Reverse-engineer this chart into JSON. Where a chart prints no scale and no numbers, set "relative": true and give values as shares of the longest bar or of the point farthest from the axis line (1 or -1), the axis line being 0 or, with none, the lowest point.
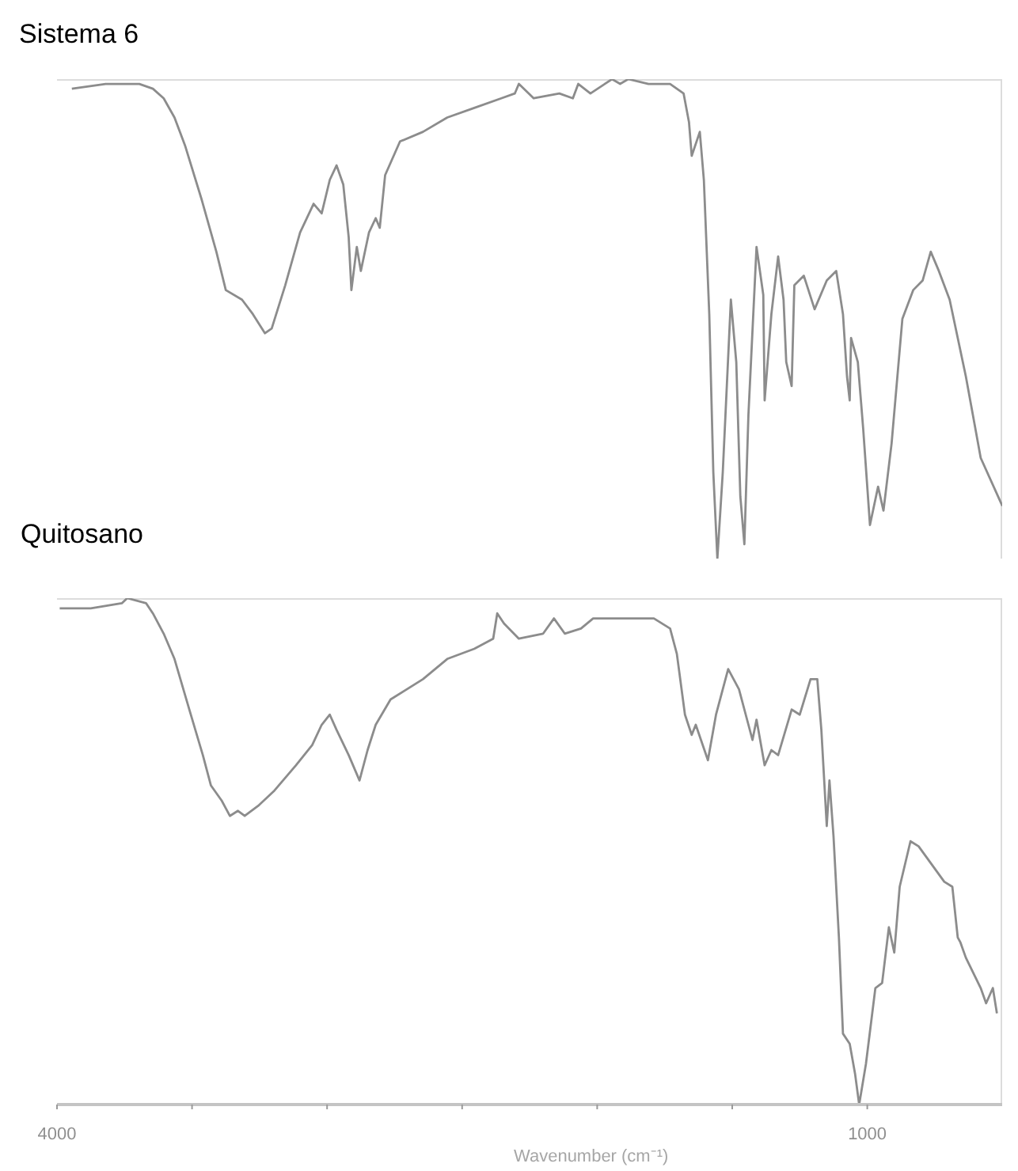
{
  "chart_data": [
    {
      "type": "line",
      "title": "Sistema 6",
      "relative": true,
      "color": "#8c8c8c",
      "xlim": [
        4000,
        500
      ],
      "tick_labels": false,
      "x": [
        3945,
        3820,
        3695,
        3645,
        3605,
        3565,
        3525,
        3465,
        3410,
        3375,
        3315,
        3275,
        3230,
        3205,
        3155,
        3100,
        3050,
        3020,
        2990,
        2965,
        2940,
        2920,
        2910,
        2890,
        2875,
        2845,
        2820,
        2805,
        2785,
        2730,
        2645,
        2555,
        2455,
        2355,
        2305,
        2290,
        2235,
        2140,
        2090,
        2070,
        2025,
        1945,
        1915,
        1885,
        1810,
        1730,
        1680,
        1660,
        1650,
        1620,
        1605,
        1585,
        1570,
        1555,
        1535,
        1505,
        1485,
        1470,
        1455,
        1440,
        1410,
        1385,
        1380,
        1355,
        1330,
        1310,
        1300,
        1280,
        1270,
        1235,
        1195,
        1150,
        1115,
        1090,
        1075,
        1065,
        1060,
        1035,
        1015,
        990,
        960,
        940,
        910,
        870,
        830,
        795,
        765,
        735,
        695,
        635,
        580,
        500
      ],
      "values": [
        0.98,
        0.99,
        0.99,
        0.98,
        0.96,
        0.92,
        0.86,
        0.75,
        0.64,
        0.56,
        0.54,
        0.51,
        0.47,
        0.48,
        0.57,
        0.68,
        0.74,
        0.72,
        0.79,
        0.82,
        0.78,
        0.67,
        0.56,
        0.65,
        0.6,
        0.68,
        0.71,
        0.69,
        0.8,
        0.87,
        0.89,
        0.92,
        0.94,
        0.96,
        0.97,
        0.99,
        0.96,
        0.97,
        0.96,
        0.99,
        0.97,
        1.0,
        0.99,
        1.0,
        0.99,
        0.99,
        0.97,
        0.91,
        0.84,
        0.89,
        0.79,
        0.51,
        0.18,
        0,
        0.18,
        0.54,
        0.41,
        0.13,
        0.03,
        0.3,
        0.65,
        0.55,
        0.33,
        0.51,
        0.63,
        0.54,
        0.41,
        0.36,
        0.57,
        0.59,
        0.52,
        0.58,
        0.6,
        0.51,
        0.38,
        0.33,
        0.46,
        0.41,
        0.27,
        0.07,
        0.15,
        0.1,
        0.24,
        0.5,
        0.56,
        0.58,
        0.64,
        0.6,
        0.54,
        0.38,
        0.21,
        0.11
      ]
    },
    {
      "type": "line",
      "title": "Quitosano",
      "xlabel": "Wavenumber (cm⁻¹)",
      "relative": true,
      "color": "#8c8c8c",
      "xlim": [
        4000,
        500
      ],
      "tick_labels": "x",
      "xticks": [
        4000,
        {
          "value": 3500,
          "label": null
        },
        {
          "value": 3000,
          "label": null
        },
        {
          "value": 2500,
          "label": null
        },
        {
          "value": 2000,
          "label": null
        },
        {
          "value": 1500,
          "label": null
        },
        1000
      ],
      "x": [
        3990,
        3875,
        3760,
        3740,
        3670,
        3645,
        3605,
        3565,
        3510,
        3460,
        3430,
        3390,
        3360,
        3330,
        3305,
        3255,
        3195,
        3115,
        3055,
        3020,
        2990,
        2965,
        2920,
        2880,
        2850,
        2820,
        2765,
        2645,
        2555,
        2455,
        2385,
        2370,
        2345,
        2290,
        2200,
        2160,
        2120,
        2060,
        2015,
        1790,
        1730,
        1705,
        1675,
        1650,
        1635,
        1590,
        1560,
        1515,
        1475,
        1440,
        1425,
        1410,
        1380,
        1355,
        1330,
        1280,
        1250,
        1210,
        1185,
        1170,
        1150,
        1140,
        1125,
        1105,
        1090,
        1065,
        1045,
        1030,
        1005,
        970,
        945,
        920,
        900,
        880,
        840,
        810,
        715,
        685,
        665,
        655,
        635,
        580,
        560,
        535,
        520
      ],
      "values": [
        0.98,
        0.98,
        0.99,
        1.0,
        0.99,
        0.97,
        0.93,
        0.88,
        0.78,
        0.69,
        0.63,
        0.6,
        0.57,
        0.58,
        0.57,
        0.59,
        0.62,
        0.67,
        0.71,
        0.75,
        0.77,
        0.74,
        0.69,
        0.64,
        0.7,
        0.75,
        0.8,
        0.84,
        0.88,
        0.9,
        0.92,
        0.97,
        0.95,
        0.92,
        0.93,
        0.96,
        0.93,
        0.94,
        0.96,
        0.96,
        0.94,
        0.89,
        0.77,
        0.73,
        0.75,
        0.68,
        0.77,
        0.86,
        0.82,
        0.75,
        0.72,
        0.76,
        0.67,
        0.7,
        0.69,
        0.78,
        0.77,
        0.84,
        0.84,
        0.74,
        0.55,
        0.64,
        0.53,
        0.33,
        0.14,
        0.12,
        0.06,
        0,
        0.08,
        0.23,
        0.24,
        0.35,
        0.3,
        0.43,
        0.52,
        0.51,
        0.44,
        0.43,
        0.33,
        0.32,
        0.29,
        0.23,
        0.2,
        0.23,
        0.18
      ]
    }
  ]
}
